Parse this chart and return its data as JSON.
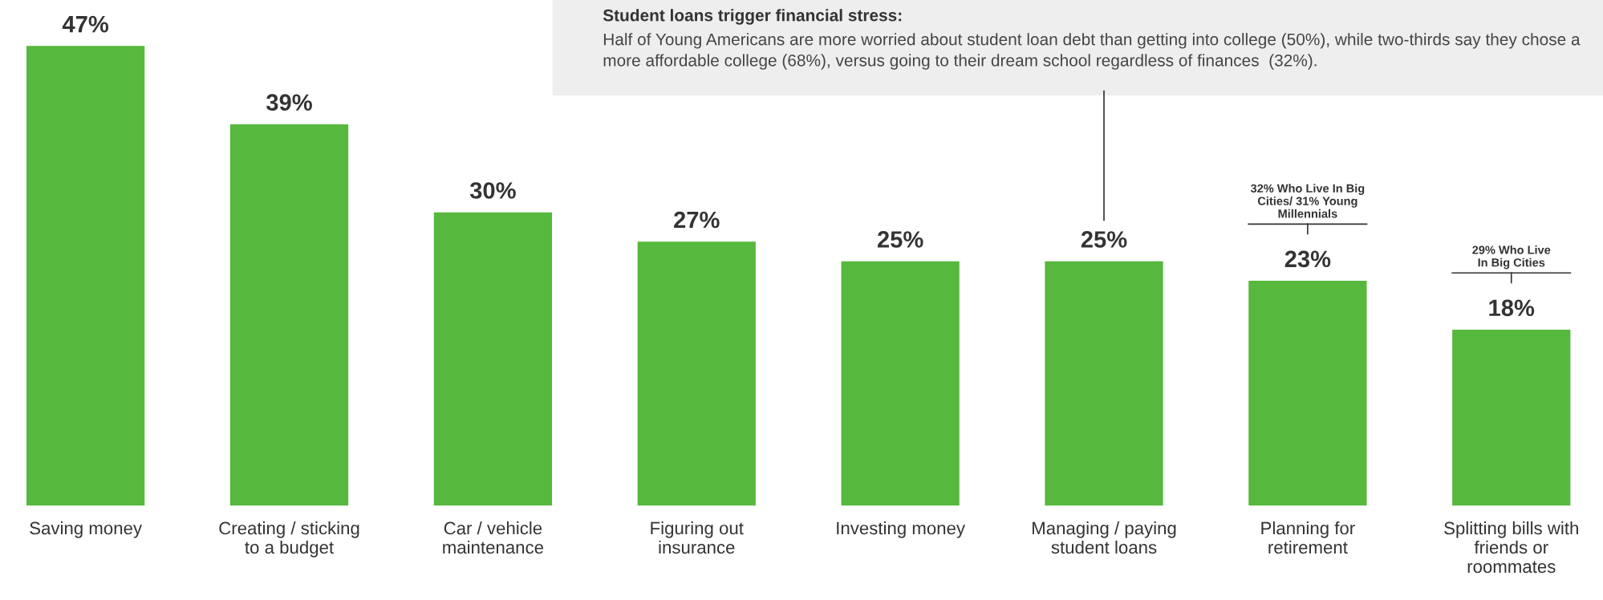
{
  "chart_data": {
    "type": "bar",
    "categories": [
      "Saving money",
      "Creating / sticking\nto a budget",
      "Car / vehicle\nmaintenance",
      "Figuring out\ninsurance",
      "Investing money",
      "Managing / paying\nstudent loans",
      "Planning for\nretirement",
      "Splitting bills with\nfriends or\nroommates"
    ],
    "values": [
      47,
      39,
      30,
      27,
      25,
      25,
      23,
      18
    ],
    "color": "#56b83c",
    "data_labels": true,
    "value_labels": [
      "47%",
      "39%",
      "30%",
      "27%",
      "25%",
      "25%",
      "23%",
      "18%"
    ],
    "annotations": [
      "Student loans trigger financial stress:",
      "Half of Young Americans are more worried about student loan debt than getting into college (50%), while two-thirds say they chose a more affordable college (68%), versus going to their dream school regardless of finances  (32%).",
      {
        "text": "32% Who Live In Big\nCities/ 31% Young\nMillennials",
        "x": "Planning for\nretirement"
      },
      {
        "text": "29% Who Live\nIn Big Cities",
        "x": "Splitting bills with\nfriends or\nroommates"
      }
    ],
    "grid": false
  }
}
